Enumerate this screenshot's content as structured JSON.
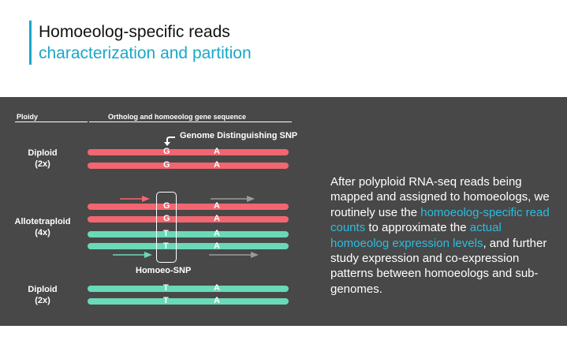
{
  "title": {
    "line1": "Homoeolog-specific reads",
    "line2": "characterization and partition"
  },
  "headers": {
    "ploidy": "Ploidy",
    "sequence": "Ortholog and homoeolog gene sequence"
  },
  "annotations": {
    "snp_label": "Genome Distinguishing SNP",
    "homoeo_snp": "Homoeo-SNP"
  },
  "groups": [
    {
      "label_line1": "Diploid",
      "label_line2": "(2x)",
      "bars": [
        {
          "color": "red",
          "snp": "G",
          "site": "A"
        },
        {
          "color": "red",
          "snp": "G",
          "site": "A"
        }
      ]
    },
    {
      "label_line1": "Allotetraploid",
      "label_line2": "(4x)",
      "bars": [
        {
          "color": "red",
          "snp": "G",
          "site": "A"
        },
        {
          "color": "red",
          "snp": "G",
          "site": "A"
        },
        {
          "color": "green",
          "snp": "T",
          "site": "A"
        },
        {
          "color": "green",
          "snp": "T",
          "site": "A"
        }
      ]
    },
    {
      "label_line1": "Diploid",
      "label_line2": "(2x)",
      "bars": [
        {
          "color": "green",
          "snp": "T",
          "site": "A"
        },
        {
          "color": "green",
          "snp": "T",
          "site": "A"
        }
      ]
    }
  ],
  "description": {
    "part1": "After polyploid RNA-seq reads being mapped and assigned to homoeologs, we routinely use the ",
    "highlight1": "homoeolog-specific read counts",
    "part2": " to approximate the ",
    "highlight2": "actual homoeolog expression levels",
    "part3": ", and further study expression and co-expression patterns between homoeologs and sub-genomes."
  },
  "colors": {
    "accent": "#1aa7c8",
    "highlight": "#2bbde0",
    "red_bar": "#f26670",
    "green_bar": "#6ad9b8",
    "panel": "#484848"
  }
}
